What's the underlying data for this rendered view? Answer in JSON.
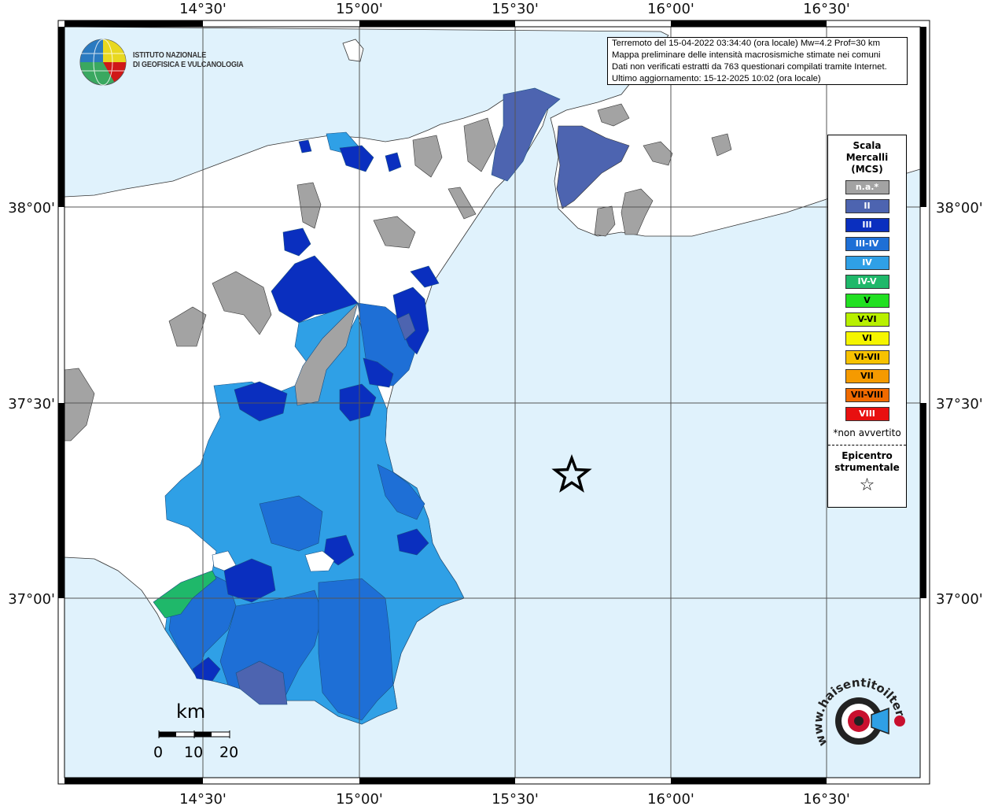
{
  "map": {
    "lon_ticks": [
      "14°30'",
      "15°00'",
      "15°30'",
      "16°00'",
      "16°30'"
    ],
    "lat_ticks": [
      "38°00'",
      "37°30'",
      "37°00'"
    ],
    "sea_color": "#e0f2fc",
    "land_color": "#ffffff",
    "epicenter_icon": "star-icon"
  },
  "info": {
    "line1": "Terremoto del 15-04-2022 03:34:40 (ora locale) Mw=4.2 Prof=30 km",
    "line2": "Mappa preliminare delle intensità macrosismiche stimate nei comuni",
    "line3": "Dati non verificati estratti da 763 questionari compilati tramite Internet.",
    "line4": "Ultimo aggiornamento: 15-12-2025 10:02 (ora locale)"
  },
  "logo": {
    "line1": "ISTITUTO NAZIONALE",
    "line2": "DI GEOFISICA E VULCANOLOGIA"
  },
  "legend": {
    "title1": "Scala",
    "title2": "Mercalli",
    "title3": "(MCS)",
    "items": [
      {
        "label": "n.a.*",
        "color": "#a3a3a3"
      },
      {
        "label": "II",
        "color": "#4d64b0"
      },
      {
        "label": "III",
        "color": "#0a2fbf"
      },
      {
        "label": "III-IV",
        "color": "#1e6fd6"
      },
      {
        "label": "IV",
        "color": "#2fa0e6"
      },
      {
        "label": "IV-V",
        "color": "#1fb86a"
      },
      {
        "label": "V",
        "color": "#22e022"
      },
      {
        "label": "V-VI",
        "color": "#b8f000"
      },
      {
        "label": "VI",
        "color": "#f5f500"
      },
      {
        "label": "VI-VII",
        "color": "#f7c200"
      },
      {
        "label": "VII",
        "color": "#f59a00"
      },
      {
        "label": "VII-VIII",
        "color": "#f06a00"
      },
      {
        "label": "VIII",
        "color": "#e81010"
      }
    ],
    "note": "*non avvertito",
    "epi1": "Epicentro",
    "epi2": "strumentale",
    "star": "☆"
  },
  "scale_bar": {
    "unit": "km",
    "labels": [
      "0",
      "10",
      "20"
    ]
  },
  "watermark": {
    "text": "www.haisentitoilterremoto.it"
  }
}
